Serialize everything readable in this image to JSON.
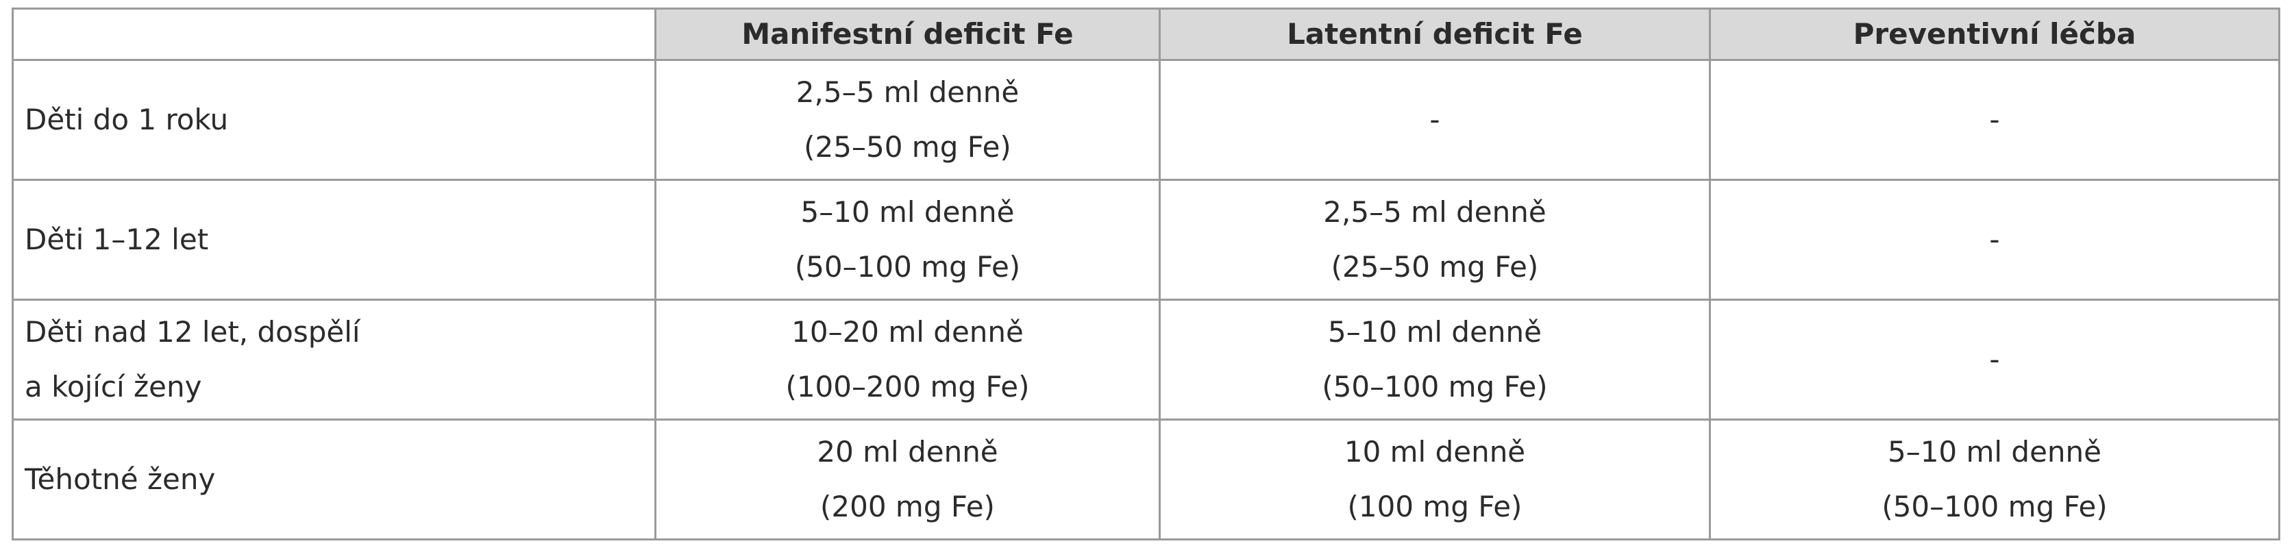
{
  "table": {
    "header": [
      "Manifestní deficit Fe",
      "Latentní deficit Fe",
      "Preventivní léčba"
    ],
    "rows": [
      [
        [
          "Děti do 1 roku"
        ],
        [
          "2,5–5 ml denně",
          "(25–50 mg Fe)"
        ],
        [
          "-"
        ],
        [
          "-"
        ]
      ],
      [
        [
          "Děti 1–12 let"
        ],
        [
          "5–10 ml denně",
          "(50–100 mg Fe)"
        ],
        [
          "2,5–5 ml denně",
          "(25–50 mg Fe)"
        ],
        [
          "-"
        ]
      ],
      [
        [
          "Děti nad 12 let, dospělí",
          "a kojící ženy"
        ],
        [
          "10–20 ml denně",
          "(100–200 mg Fe)"
        ],
        [
          "5–10 ml denně",
          "(50–100 mg Fe)"
        ],
        [
          "-"
        ]
      ],
      [
        [
          "Těhotné ženy"
        ],
        [
          "20 ml denně",
          "(200 mg Fe)"
        ],
        [
          "10 ml denně",
          "(100 mg Fe)"
        ],
        [
          "5–10 ml denně",
          "(50–100 mg Fe)"
        ]
      ]
    ]
  }
}
